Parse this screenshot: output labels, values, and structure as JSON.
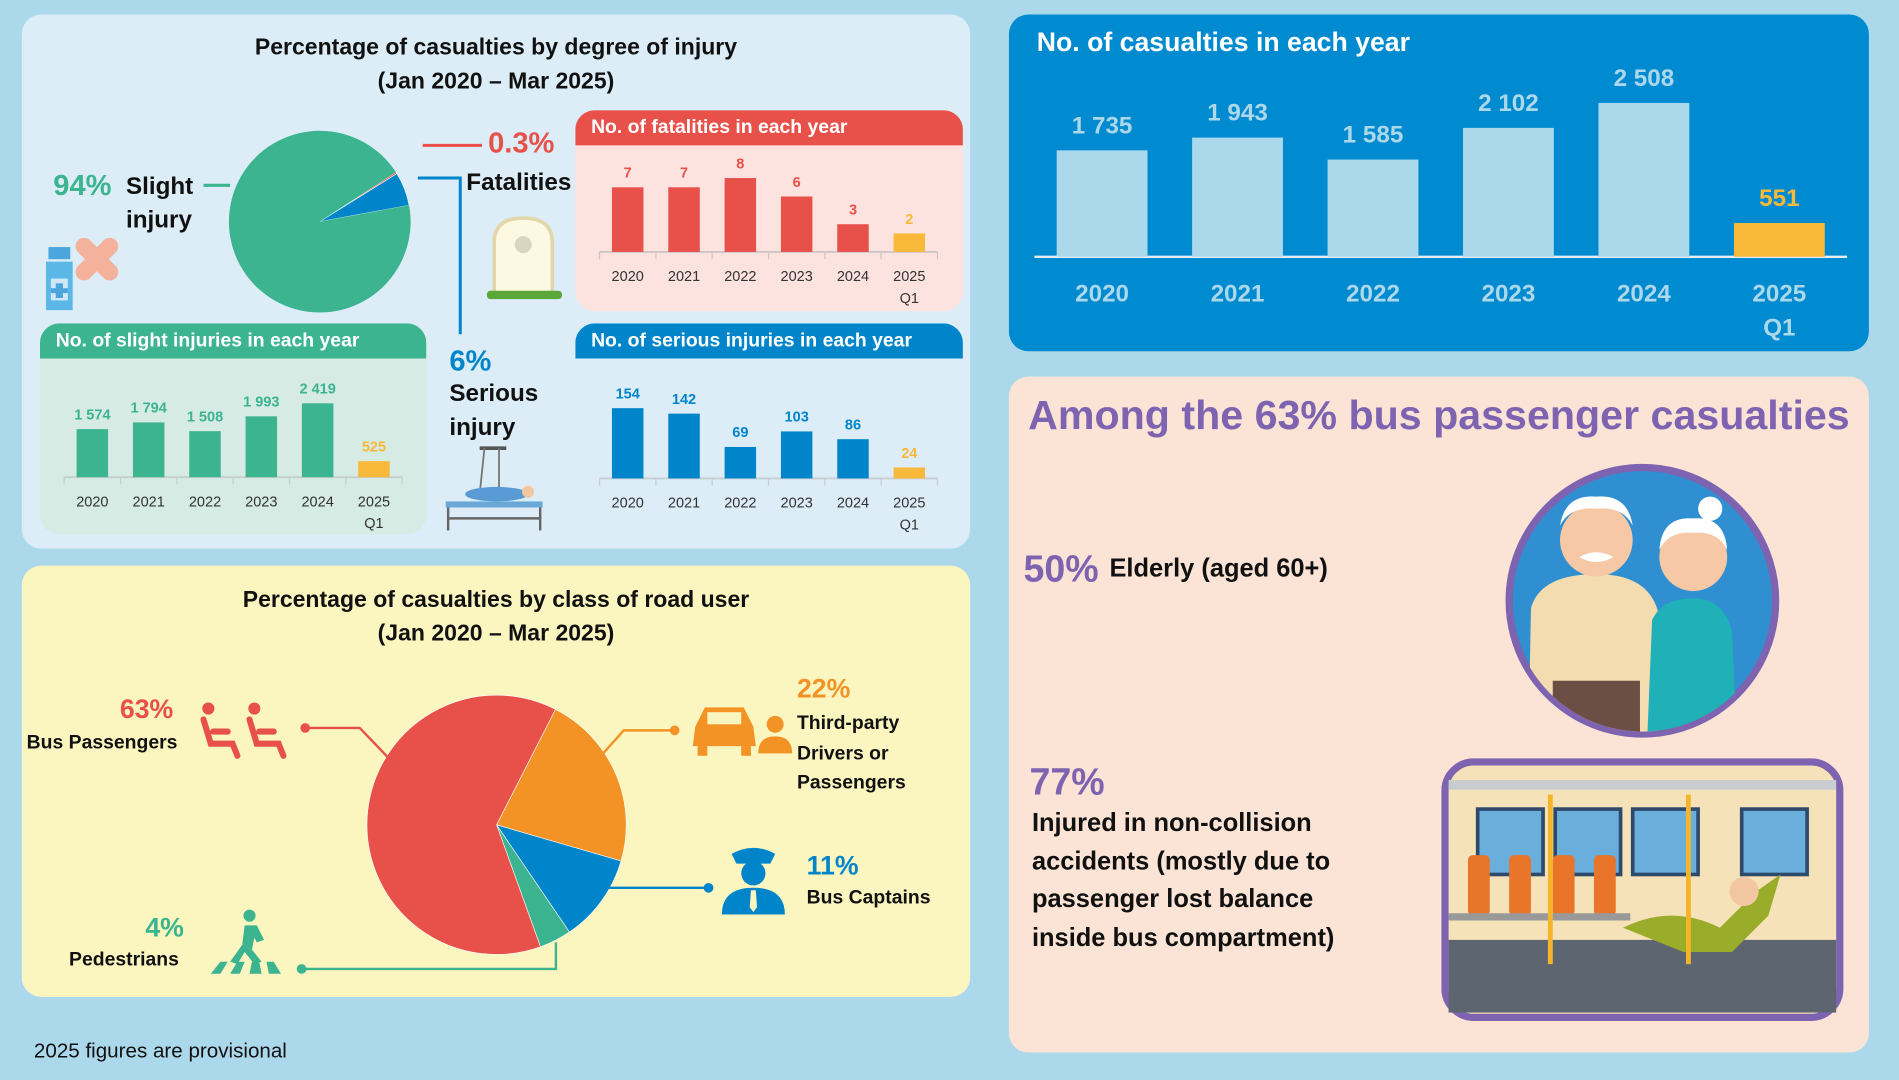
{
  "colors": {
    "background": "#acd8ec",
    "slight": "#3bb48f",
    "serious": "#0085cb",
    "fatal": "#e8504a",
    "provisional": "#f8b83a",
    "orange": "#f39325",
    "purple": "#7e63b0"
  },
  "injury_section": {
    "title_line1": "Percentage of casualties by degree of injury",
    "title_line2": "(Jan 2020 – Mar 2025)",
    "slight_pct": "94%",
    "slight_label_1": "Slight",
    "slight_label_2": "injury",
    "fatal_pct": "0.3%",
    "fatal_label": "Fatalities",
    "serious_pct": "6%",
    "serious_label_1": "Serious",
    "serious_label_2": "injury"
  },
  "road_user_section": {
    "title_line1": "Percentage of casualties by class of road user",
    "title_line2": "(Jan 2020 – Mar 2025)",
    "bus_pax_pct": "63%",
    "bus_pax_label": "Bus Passengers",
    "third_party_pct": "22%",
    "third_party_label_1": "Third-party",
    "third_party_label_2": "Drivers or",
    "third_party_label_3": "Passengers",
    "captains_pct": "11%",
    "captains_label": "Bus Captains",
    "pedestrians_pct": "4%",
    "pedestrians_label": "Pedestrians"
  },
  "bus_passenger_section": {
    "title": "Among the 63% bus passenger casualties",
    "elderly_pct": "50%",
    "elderly_label": "Elderly (aged 60+)",
    "noncollision_pct": "77%",
    "noncollision_lines": [
      "Injured in non-collision",
      "accidents (mostly due to",
      "passenger lost balance",
      "inside bus compartment)"
    ]
  },
  "footnote": "2025 figures are provisional",
  "chart_data": [
    {
      "id": "injury_pie",
      "type": "pie",
      "categories": [
        "Slight injury",
        "Serious injury",
        "Fatalities"
      ],
      "values": [
        94,
        6,
        0.3
      ],
      "unit": "%",
      "colors": [
        "#3bb48f",
        "#0085cb",
        "#e8504a"
      ]
    },
    {
      "id": "fatalities",
      "type": "bar",
      "title": "No. of fatalities in each year",
      "categories": [
        "2020",
        "2021",
        "2022",
        "2023",
        "2024",
        "2025"
      ],
      "category_sublabels": [
        "",
        "",
        "",
        "",
        "",
        "Q1"
      ],
      "values": [
        7,
        7,
        8,
        6,
        3,
        2
      ],
      "value_labels": [
        "7",
        "7",
        "8",
        "6",
        "3",
        "2"
      ],
      "ylim": [
        0,
        8
      ],
      "color": "#e8504a",
      "provisional_color": "#f8b83a"
    },
    {
      "id": "slight",
      "type": "bar",
      "title": "No. of slight injuries in each year",
      "categories": [
        "2020",
        "2021",
        "2022",
        "2023",
        "2024",
        "2025"
      ],
      "category_sublabels": [
        "",
        "",
        "",
        "",
        "",
        "Q1"
      ],
      "values": [
        1574,
        1794,
        1508,
        1993,
        2419,
        525
      ],
      "value_labels": [
        "1 574",
        "1 794",
        "1 508",
        "1 993",
        "2 419",
        "525"
      ],
      "ylim": [
        0,
        2419
      ],
      "color": "#3bb48f",
      "provisional_color": "#f8b83a"
    },
    {
      "id": "serious",
      "type": "bar",
      "title": "No. of serious injuries in each year",
      "categories": [
        "2020",
        "2021",
        "2022",
        "2023",
        "2024",
        "2025"
      ],
      "category_sublabels": [
        "",
        "",
        "",
        "",
        "",
        "Q1"
      ],
      "values": [
        154,
        142,
        69,
        103,
        86,
        24
      ],
      "value_labels": [
        "154",
        "142",
        "69",
        "103",
        "86",
        "24"
      ],
      "ylim": [
        0,
        154
      ],
      "color": "#0085cb",
      "provisional_color": "#f8b83a"
    },
    {
      "id": "casualties",
      "type": "bar",
      "title": "No. of casualties in each year",
      "categories": [
        "2020",
        "2021",
        "2022",
        "2023",
        "2024",
        "2025"
      ],
      "category_sublabels": [
        "",
        "",
        "",
        "",
        "",
        "Q1"
      ],
      "values": [
        1735,
        1943,
        1585,
        2102,
        2508,
        551
      ],
      "value_labels": [
        "1 735",
        "1 943",
        "1 585",
        "2 102",
        "2 508",
        "551"
      ],
      "ylim": [
        0,
        2508
      ],
      "color": "#acd8ec",
      "provisional_color": "#f8b83a"
    },
    {
      "id": "road_user_pie",
      "type": "pie",
      "categories": [
        "Bus Passengers",
        "Third-party Drivers or Passengers",
        "Bus Captains",
        "Pedestrians"
      ],
      "values": [
        63,
        22,
        11,
        4
      ],
      "unit": "%",
      "colors": [
        "#e8504a",
        "#f39325",
        "#0085cb",
        "#3bb48f"
      ]
    }
  ]
}
